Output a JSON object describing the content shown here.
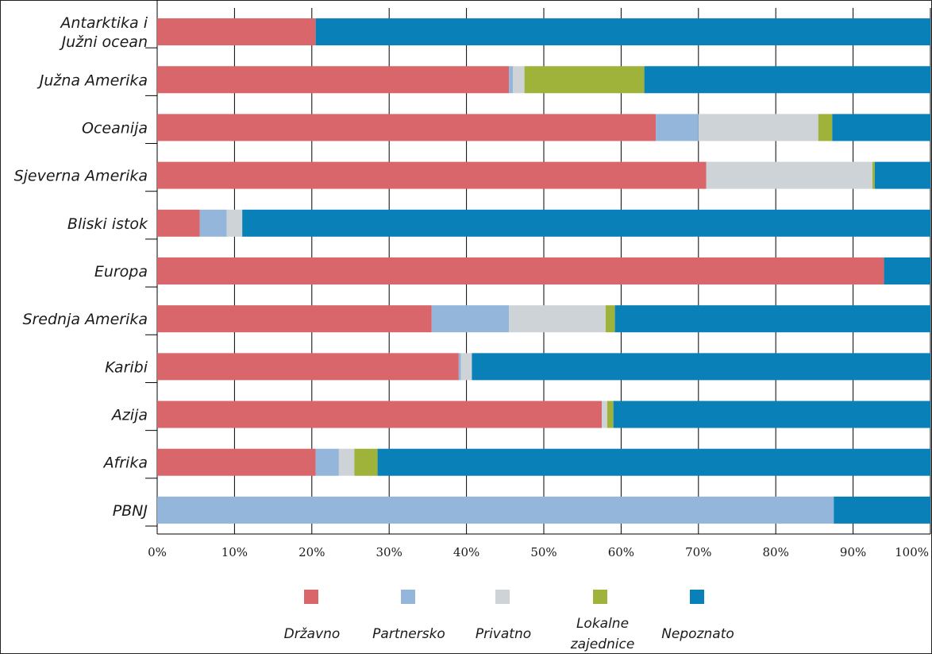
{
  "chart_data": {
    "type": "bar",
    "orientation": "horizontal",
    "stacked": true,
    "title": "",
    "xlabel": "",
    "ylabel": "",
    "xlim": [
      0,
      100
    ],
    "grid": "vertical",
    "legend_position": "bottom",
    "categories": [
      "Antarktika i Južni ocean",
      "Južna Amerika",
      "Oceanija",
      "Sjeverna Amerika",
      "Bliski istok",
      "Europa",
      "Srednja Amerika",
      "Karibi",
      "Azija",
      "Afrika",
      "PBNJ"
    ],
    "category_lines": [
      [
        "Antarktika i",
        "Južni ocean"
      ],
      [
        "Južna Amerika"
      ],
      [
        "Oceanija"
      ],
      [
        "Sjeverna Amerika"
      ],
      [
        "Bliski istok"
      ],
      [
        "Europa"
      ],
      [
        "Srednja Amerika"
      ],
      [
        "Karibi"
      ],
      [
        "Azija"
      ],
      [
        "Afrika"
      ],
      [
        "PBNJ"
      ]
    ],
    "x_ticks": [
      "0%",
      "10%",
      "20%",
      "30%",
      "40%",
      "50%",
      "60%",
      "70%",
      "80%",
      "90%",
      "100%"
    ],
    "series": [
      {
        "name": "Državno",
        "color": "#d9666a",
        "values": [
          20.5,
          45.5,
          64.5,
          71,
          5.5,
          94,
          35.5,
          39,
          57.5,
          20.5,
          0
        ]
      },
      {
        "name": "Partnersko",
        "color": "#94b6da",
        "values": [
          0,
          0.5,
          5.5,
          0,
          3.5,
          0,
          10,
          0.3,
          0,
          3,
          87.5
        ]
      },
      {
        "name": "Privatno",
        "color": "#cdd3d6",
        "values": [
          0,
          1.5,
          15.5,
          21.5,
          2,
          0,
          12.5,
          1.4,
          0.7,
          2,
          0
        ]
      },
      {
        "name": "Lokalne zajednice",
        "color": "#9fb23a",
        "values": [
          0,
          15.5,
          1.8,
          0.3,
          0,
          0,
          1.2,
          0,
          0.8,
          3,
          0
        ]
      },
      {
        "name": "Nepoznato",
        "color": "#0a80b8",
        "values": [
          79.5,
          37,
          12.7,
          7.2,
          89,
          6,
          40.8,
          59.3,
          41,
          71.5,
          12.5
        ]
      }
    ],
    "legend_lines": [
      [
        "Državno"
      ],
      [
        "Partnersko"
      ],
      [
        "Privatno"
      ],
      [
        "Lokalne",
        "zajednice"
      ],
      [
        "Nepoznato"
      ]
    ]
  }
}
